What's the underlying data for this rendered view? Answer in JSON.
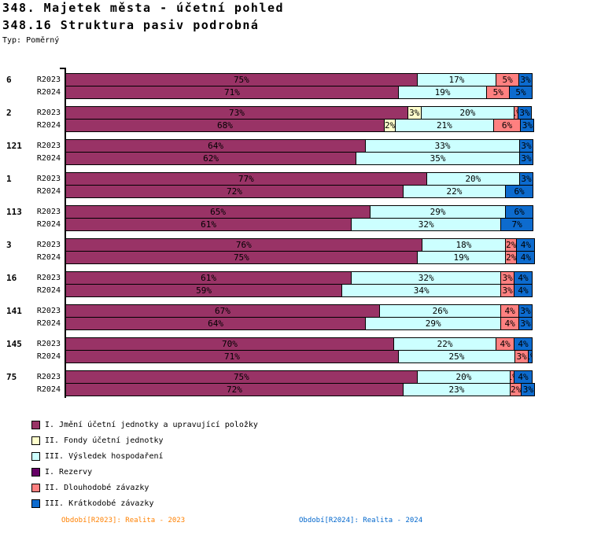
{
  "header": {
    "title": "348. Majetek města - účetní pohled",
    "subtitle": "348.16 Struktura pasiv podrobná",
    "type_label": "Typ: Poměrný"
  },
  "footer": {
    "period_2023": {
      "text": "Období[R2023]: Realita - 2023",
      "color": "#FF8000"
    },
    "period_2024": {
      "text": "Období[R2024]: Realita - 2024",
      "color": "#0066CC"
    }
  },
  "chart_data": {
    "type": "bar",
    "stacked": true,
    "orientation": "horizontal",
    "unit": "%",
    "xlim": [
      0,
      100
    ],
    "legend_position": "bottom-left",
    "grid": false,
    "series": [
      {
        "name": "I. Jmění účetní jednotky a upravující položky",
        "color": "#993366"
      },
      {
        "name": "II. Fondy účetní jednotky",
        "color": "#FFFFCC"
      },
      {
        "name": "III. Výsledek hospodaření",
        "color": "#CCFFFF"
      },
      {
        "name": "I. Rezervy",
        "color": "#660066"
      },
      {
        "name": "II. Dlouhodobé závazky",
        "color": "#FF8080"
      },
      {
        "name": "III. Krátkodobé závazky",
        "color": "#0D6BCE"
      }
    ],
    "rows": [
      {
        "group": "6",
        "period": "R2023",
        "values": [
          75,
          0,
          17,
          0,
          5,
          3
        ]
      },
      {
        "group": "6",
        "period": "R2024",
        "values": [
          71,
          0,
          19,
          0,
          5,
          5
        ]
      },
      {
        "group": "2",
        "period": "R2023",
        "values": [
          73,
          3,
          20,
          0,
          1,
          3
        ]
      },
      {
        "group": "2",
        "period": "R2024",
        "values": [
          68,
          2,
          21,
          0,
          6,
          3
        ]
      },
      {
        "group": "121",
        "period": "R2023",
        "values": [
          64,
          0,
          33,
          0,
          0,
          3
        ]
      },
      {
        "group": "121",
        "period": "R2024",
        "values": [
          62,
          0,
          35,
          0,
          0,
          3
        ]
      },
      {
        "group": "1",
        "period": "R2023",
        "values": [
          77,
          0,
          20,
          0,
          0,
          3
        ]
      },
      {
        "group": "1",
        "period": "R2024",
        "values": [
          72,
          0,
          22,
          0,
          0,
          6
        ]
      },
      {
        "group": "113",
        "period": "R2023",
        "values": [
          65,
          0,
          29,
          0,
          0,
          6
        ]
      },
      {
        "group": "113",
        "period": "R2024",
        "values": [
          61,
          0,
          32,
          0,
          0,
          7
        ]
      },
      {
        "group": "3",
        "period": "R2023",
        "values": [
          76,
          0,
          18,
          0,
          2,
          4
        ]
      },
      {
        "group": "3",
        "period": "R2024",
        "values": [
          75,
          0,
          19,
          0,
          2,
          4
        ]
      },
      {
        "group": "16",
        "period": "R2023",
        "values": [
          61,
          0,
          32,
          0,
          3,
          4
        ]
      },
      {
        "group": "16",
        "period": "R2024",
        "values": [
          59,
          0,
          34,
          0,
          3,
          4
        ]
      },
      {
        "group": "141",
        "period": "R2023",
        "values": [
          67,
          0,
          26,
          0,
          4,
          3
        ]
      },
      {
        "group": "141",
        "period": "R2024",
        "values": [
          64,
          0,
          29,
          0,
          4,
          3
        ]
      },
      {
        "group": "145",
        "period": "R2023",
        "values": [
          70,
          0,
          22,
          0,
          4,
          4
        ]
      },
      {
        "group": "145",
        "period": "R2024",
        "values": [
          71,
          0,
          25,
          0,
          3,
          1
        ]
      },
      {
        "group": "75",
        "period": "R2023",
        "values": [
          75,
          0,
          20,
          0,
          1,
          4
        ]
      },
      {
        "group": "75",
        "period": "R2024",
        "values": [
          72,
          0,
          23,
          0,
          2,
          3
        ]
      }
    ]
  }
}
